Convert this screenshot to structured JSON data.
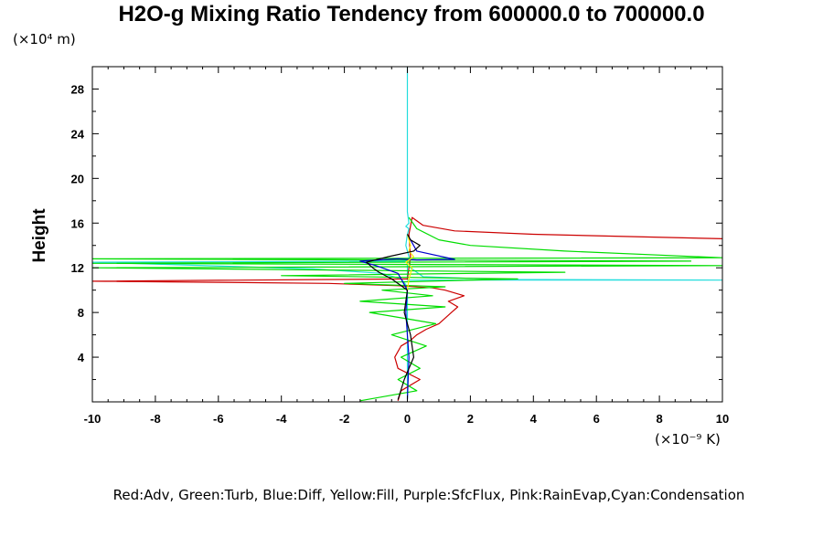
{
  "chart_data": {
    "type": "line",
    "title": "H2O-g Mixing Ratio Tendency from 600000.0 to 700000.0",
    "ylabel": "Height",
    "y_unit_label": "(×10⁴ m)",
    "x_unit_label": "(×10⁻⁹ K)",
    "legend_text": "Red:Adv, Green:Turb, Blue:Diff, Yellow:Fill, Purple:SfcFlux, Pink:RainEvap,Cyan:Condensation",
    "xlim": [
      -10,
      10
    ],
    "ylim": [
      0,
      30
    ],
    "x_ticks": [
      -10,
      -8,
      -6,
      -4,
      -2,
      0,
      2,
      4,
      6,
      8,
      10
    ],
    "y_ticks": [
      4,
      8,
      12,
      16,
      20,
      24,
      28
    ],
    "colors": {
      "Adv": "#cc0000",
      "Turb": "#00dd00",
      "Diff": "#0000cc",
      "Fill": "#ffee00",
      "Condensation": "#22dddd",
      "Total": "#000000"
    },
    "series": [
      {
        "key": "Condensation",
        "x": [
          0,
          0,
          0,
          0,
          0,
          -0.05,
          -0.2,
          -0.8,
          -3,
          -10,
          0,
          0,
          10,
          3,
          0.5,
          0.1,
          0.05,
          -0.05,
          0,
          0.05,
          -0.05,
          0.05,
          0,
          0,
          0
        ],
        "y": [
          0.3,
          4,
          8,
          9,
          9.8,
          10.5,
          11,
          11.5,
          11.9,
          12.5,
          12.6,
          10.9,
          10.9,
          10.95,
          11.2,
          12,
          13,
          14,
          15,
          15.5,
          15.7,
          16,
          17,
          23,
          30
        ]
      },
      {
        "key": "Adv",
        "x": [
          -0.3,
          -0.2,
          0.4,
          -0.3,
          -0.4,
          -0.2,
          0.1,
          0.3,
          0.6,
          1.0,
          1.2,
          1.4,
          1.6,
          1.3,
          1.8,
          1.2,
          0.8,
          -0.3,
          -2.5,
          -6,
          -10,
          0,
          0.1,
          0.05,
          0.15,
          0.5,
          1.5,
          4,
          10
        ],
        "y": [
          0.1,
          1,
          2,
          3,
          4,
          5,
          5.5,
          6,
          6.5,
          7,
          7.5,
          8,
          8.5,
          9,
          9.5,
          10,
          10.2,
          10.4,
          10.6,
          10.7,
          10.8,
          11,
          13,
          15,
          16.5,
          15.8,
          15.3,
          15,
          14.6
        ]
      },
      {
        "key": "Turb",
        "x": [
          -1.5,
          0.3,
          -0.3,
          0.4,
          -0.2,
          0.6,
          -0.5,
          0.9,
          -1.2,
          1.2,
          -1.5,
          0.8,
          -0.8,
          1.2,
          -2,
          3.5,
          -4,
          5,
          -10,
          10,
          -10,
          9,
          -10,
          10,
          5,
          2,
          1,
          0.3,
          0.05
        ],
        "y": [
          0.1,
          1,
          2,
          3,
          4,
          5,
          6,
          7,
          8,
          8.5,
          9,
          9.5,
          10,
          10.3,
          10.6,
          11,
          11.3,
          11.6,
          12,
          12.2,
          12.4,
          12.6,
          12.8,
          12.9,
          13.5,
          14,
          14.5,
          15.5,
          16.5
        ]
      },
      {
        "key": "Diff",
        "x": [
          0,
          0.05,
          -0.05,
          0,
          -0.3,
          -1.0,
          -1.5,
          -0.3,
          0.3,
          1.5,
          0.3,
          0.1,
          0
        ],
        "y": [
          0.2,
          4,
          8,
          10,
          11.5,
          12.2,
          12.6,
          12.8,
          12.7,
          12.75,
          13.5,
          14.5,
          15
        ]
      },
      {
        "key": "Fill",
        "x": [
          0,
          0.05,
          0.15,
          -0.05,
          0.2,
          0.05,
          0.1,
          0
        ],
        "y": [
          10,
          11,
          12,
          12.5,
          13,
          13.5,
          14,
          15
        ]
      },
      {
        "key": "Total",
        "x": [
          -0.3,
          -0.1,
          0.2,
          0.1,
          -0.1,
          0,
          -0.5,
          -0.9,
          -1.1,
          -1.3,
          -0.6,
          0.2,
          0.4,
          0.1,
          0
        ],
        "y": [
          0.2,
          2,
          4,
          6,
          8,
          10,
          11,
          11.6,
          12,
          12.5,
          13,
          13.5,
          14,
          14.5,
          15
        ]
      }
    ]
  }
}
